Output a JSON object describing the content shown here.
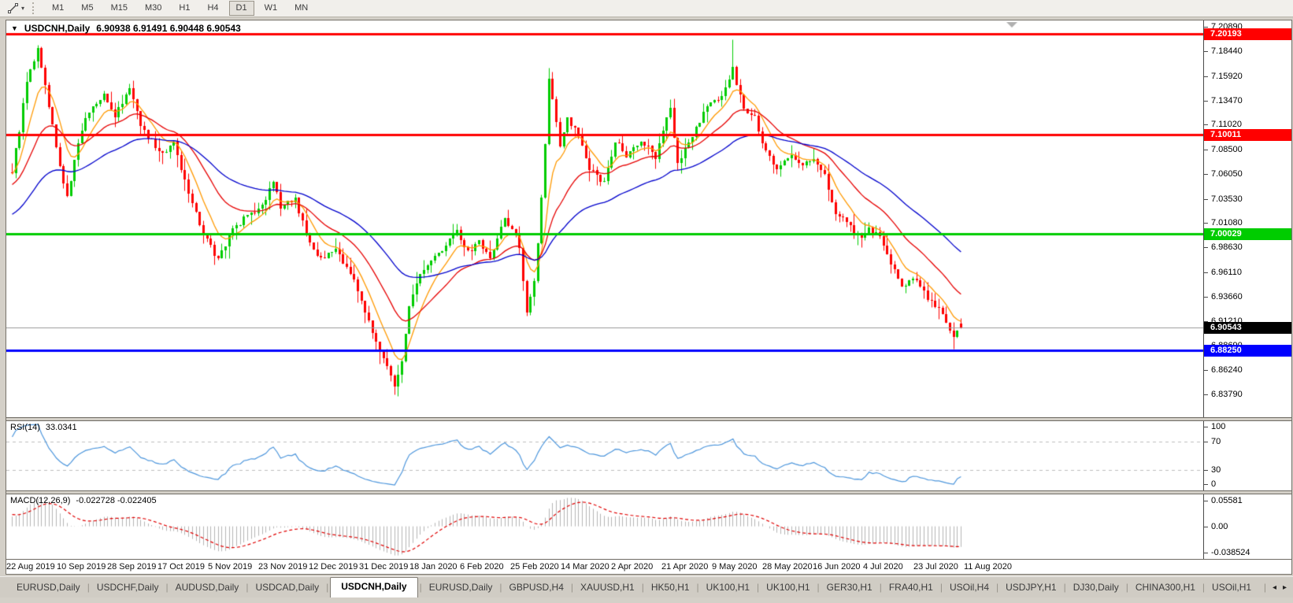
{
  "toolbar": {
    "tool_icon": "trendline-tool-icon",
    "dropdown_caret": "▾",
    "timeframes": [
      "M1",
      "M5",
      "M15",
      "M30",
      "H1",
      "H4",
      "D1",
      "W1",
      "MN"
    ],
    "active_timeframe": "D1"
  },
  "chart": {
    "collapse_icon": "▼",
    "title": "USDCNH,Daily",
    "ohlc": "6.90938 6.91491 6.90448 6.90543"
  },
  "price_axis": {
    "ticks": [
      "7.20890",
      "7.18440",
      "7.15920",
      "7.13470",
      "7.11020",
      "7.08500",
      "7.06050",
      "7.03530",
      "7.01080",
      "6.98630",
      "6.96110",
      "6.93660",
      "6.91210",
      "6.88690",
      "6.86240",
      "6.83790"
    ],
    "levels": [
      {
        "label": "7.20193",
        "price": 7.20193,
        "color": "#ff0000"
      },
      {
        "label": "7.10011",
        "price": 7.10011,
        "color": "#ff0000"
      },
      {
        "label": "7.00029",
        "price": 7.00029,
        "color": "#00cc00"
      },
      {
        "label": "6.88250",
        "price": 6.8825,
        "color": "#0000ff"
      }
    ],
    "current": {
      "label": "6.90543",
      "price": 6.90543,
      "color": "#000000"
    }
  },
  "rsi_panel": {
    "label": "RSI(14)",
    "value": "33.0341",
    "axis_labels": [
      "100",
      "70",
      "30",
      "0"
    ],
    "level_lines": [
      70,
      30
    ],
    "line_color": "#4d96dc"
  },
  "macd_panel": {
    "label": "MACD(12,26,9)",
    "values": "-0.022728 -0.022405",
    "axis_labels": [
      "0.05581",
      "0.00",
      "-0.038524"
    ],
    "histogram_color": "#b4b4b4",
    "signal_color": "#e00000"
  },
  "date_axis": {
    "labels": [
      "22 Aug 2019",
      "10 Sep 2019",
      "28 Sep 2019",
      "17 Oct 2019",
      "5 Nov 2019",
      "23 Nov 2019",
      "12 Dec 2019",
      "31 Dec 2019",
      "18 Jan 2020",
      "6 Feb 2020",
      "25 Feb 2020",
      "14 Mar 2020",
      "2 Apr 2020",
      "21 Apr 2020",
      "9 May 2020",
      "28 May 2020",
      "16 Jun 2020",
      "4 Jul 2020",
      "23 Jul 2020",
      "11 Aug 2020"
    ]
  },
  "tabs": {
    "active_index": 4,
    "items": [
      "EURUSD,Daily",
      "USDCHF,Daily",
      "AUDUSD,Daily",
      "USDCAD,Daily",
      "USDCNH,Daily",
      "EURUSD,Daily",
      "GBPUSD,H4",
      "XAUUSD,H1",
      "HK50,H1",
      "UK100,H1",
      "UK100,H1",
      "GER30,H1",
      "FRA40,H1",
      "USOil,H4",
      "USDJPY,H1",
      "DJ30,Daily",
      "CHINA300,H1",
      "USOil,H1"
    ],
    "scroll_left": "◂",
    "scroll_right": "▸"
  },
  "chart_data": {
    "type": "candlestick",
    "symbol": "USDCNH",
    "period": "Daily",
    "visible_range": {
      "start": "22 Aug 2019",
      "end": "11 Aug 2020"
    },
    "last": {
      "open": 6.90938,
      "high": 6.91491,
      "low": 6.90448,
      "close": 6.90543
    },
    "price_range": {
      "top": 7.2155,
      "bottom": 6.8148
    },
    "hlines": [
      7.20193,
      7.10011,
      7.00029,
      6.8825
    ],
    "hline_colors": [
      "#ff0000",
      "#ff0000",
      "#00cc00",
      "#0000ff"
    ],
    "current_price": 6.90543,
    "num_candles": 259,
    "bull_color": "#00cc00",
    "bear_color": "#ff0000",
    "warmup_anchors": [
      [
        0,
        6.92
      ],
      [
        12,
        7.0
      ],
      [
        26,
        7.05
      ],
      [
        44,
        7.062
      ]
    ],
    "anchors": [
      [
        0,
        7.064
      ],
      [
        2,
        7.105
      ],
      [
        4,
        7.155
      ],
      [
        7,
        7.186
      ],
      [
        10,
        7.13
      ],
      [
        13,
        7.068
      ],
      [
        15,
        7.036
      ],
      [
        18,
        7.09
      ],
      [
        20,
        7.118
      ],
      [
        25,
        7.14
      ],
      [
        28,
        7.118
      ],
      [
        32,
        7.147
      ],
      [
        35,
        7.11
      ],
      [
        40,
        7.082
      ],
      [
        44,
        7.09
      ],
      [
        48,
        7.04
      ],
      [
        52,
        7.002
      ],
      [
        56,
        6.973
      ],
      [
        60,
        7.004
      ],
      [
        64,
        7.018
      ],
      [
        68,
        7.028
      ],
      [
        71,
        7.052
      ],
      [
        73,
        7.028
      ],
      [
        77,
        7.034
      ],
      [
        80,
        7.0
      ],
      [
        83,
        6.976
      ],
      [
        88,
        6.982
      ],
      [
        92,
        6.962
      ],
      [
        95,
        6.932
      ],
      [
        98,
        6.9
      ],
      [
        102,
        6.866
      ],
      [
        104,
        6.846
      ],
      [
        106,
        6.872
      ],
      [
        108,
        6.928
      ],
      [
        111,
        6.958
      ],
      [
        114,
        6.972
      ],
      [
        118,
        6.99
      ],
      [
        121,
        7.002
      ],
      [
        124,
        6.982
      ],
      [
        127,
        6.992
      ],
      [
        130,
        6.976
      ],
      [
        134,
        7.018
      ],
      [
        138,
        6.988
      ],
      [
        140,
        6.922
      ],
      [
        142,
        6.952
      ],
      [
        143,
        6.99
      ],
      [
        145,
        7.088
      ],
      [
        146,
        7.158
      ],
      [
        149,
        7.09
      ],
      [
        151,
        7.118
      ],
      [
        154,
        7.098
      ],
      [
        157,
        7.066
      ],
      [
        161,
        7.052
      ],
      [
        164,
        7.094
      ],
      [
        167,
        7.08
      ],
      [
        171,
        7.094
      ],
      [
        175,
        7.078
      ],
      [
        179,
        7.128
      ],
      [
        181,
        7.072
      ],
      [
        185,
        7.098
      ],
      [
        189,
        7.128
      ],
      [
        193,
        7.138
      ],
      [
        196,
        7.166
      ],
      [
        199,
        7.128
      ],
      [
        202,
        7.118
      ],
      [
        205,
        7.082
      ],
      [
        208,
        7.066
      ],
      [
        212,
        7.08
      ],
      [
        215,
        7.07
      ],
      [
        218,
        7.074
      ],
      [
        221,
        7.058
      ],
      [
        224,
        7.022
      ],
      [
        228,
        7.006
      ],
      [
        231,
        6.996
      ],
      [
        233,
        7.006
      ],
      [
        236,
        6.996
      ],
      [
        239,
        6.972
      ],
      [
        242,
        6.946
      ],
      [
        246,
        6.956
      ],
      [
        249,
        6.932
      ],
      [
        252,
        6.926
      ],
      [
        254,
        6.912
      ],
      [
        256,
        6.896
      ],
      [
        258,
        6.90543
      ]
    ],
    "spikes": [
      {
        "i": 104,
        "low": 6.8379
      },
      {
        "i": 146,
        "high": 7.168
      },
      {
        "i": 196,
        "high": 7.1965
      },
      {
        "i": 256,
        "low": 6.884
      }
    ],
    "ma_lines": [
      {
        "period": 8,
        "color": "#ff9900"
      },
      {
        "period": 22,
        "color": "#e60000"
      },
      {
        "period": 50,
        "color": "#0000cc"
      }
    ],
    "rsi": {
      "period": 14,
      "current": 33.0341
    },
    "macd": {
      "fast": 12,
      "slow": 26,
      "signal": 9,
      "macd_value": -0.022728,
      "signal_value": -0.022405
    }
  }
}
